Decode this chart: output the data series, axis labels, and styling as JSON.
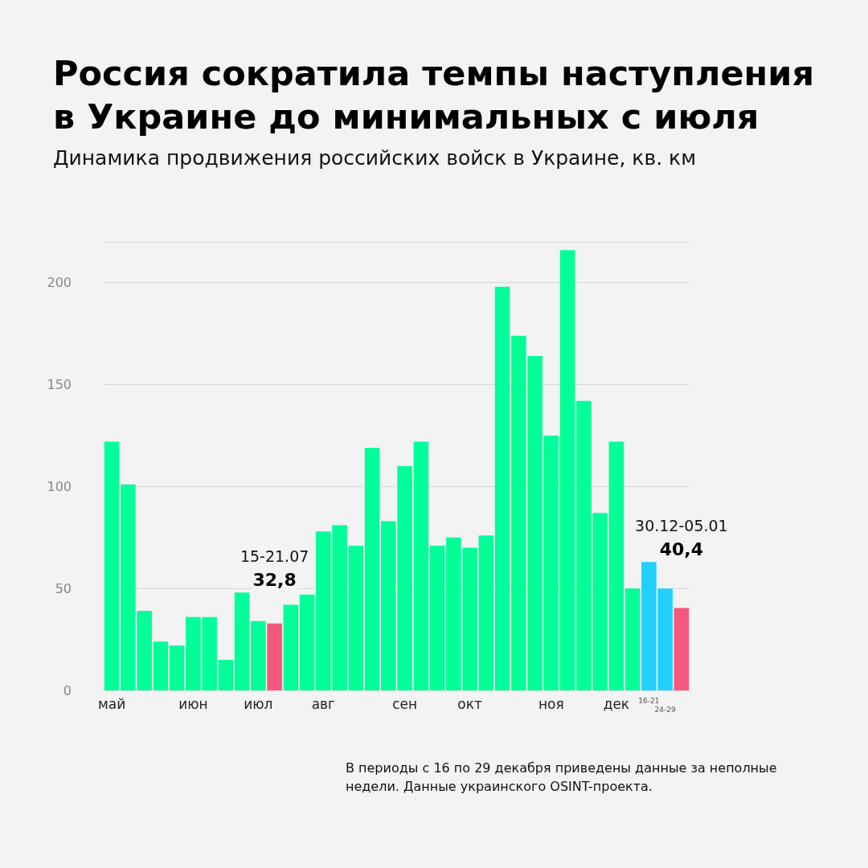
{
  "chart_data": {
    "type": "bar",
    "title": "Россия сократила темпы наступления в Украине до минимальных с июля",
    "subtitle": "Динамика продвижения российских войск в Украине, кв. км",
    "categories": [
      "май",
      null,
      null,
      null,
      null,
      "июн",
      null,
      null,
      null,
      "июл",
      null,
      null,
      null,
      "авг",
      null,
      null,
      null,
      null,
      "сен",
      null,
      null,
      null,
      "окт",
      null,
      null,
      null,
      null,
      "ноя",
      null,
      null,
      null,
      "дек",
      null,
      "16-21",
      "24-29",
      null
    ],
    "values": [
      122,
      101,
      39,
      24,
      22,
      36,
      36,
      15,
      48,
      34,
      32.8,
      42,
      47,
      78,
      81,
      71,
      119,
      83,
      110,
      122,
      71,
      75,
      70,
      76,
      198,
      174,
      164,
      125,
      216,
      142,
      87,
      122,
      50,
      63,
      50,
      40.4
    ],
    "colors": [
      "#00ff99",
      "#00ff99",
      "#00ff99",
      "#00ff99",
      "#00ff99",
      "#00ff99",
      "#00ff99",
      "#00ff99",
      "#00ff99",
      "#00ff99",
      "#f5577d",
      "#00ff99",
      "#00ff99",
      "#00ff99",
      "#00ff99",
      "#00ff99",
      "#00ff99",
      "#00ff99",
      "#00ff99",
      "#00ff99",
      "#00ff99",
      "#00ff99",
      "#00ff99",
      "#00ff99",
      "#00ff99",
      "#00ff99",
      "#00ff99",
      "#00ff99",
      "#00ff99",
      "#00ff99",
      "#00ff99",
      "#00ff99",
      "#00ff99",
      "#22d0ff",
      "#22d0ff",
      "#f5577d"
    ],
    "value_labels": [
      null,
      null,
      null,
      null,
      null,
      null,
      null,
      null,
      null,
      null,
      "32,8",
      null,
      null,
      null,
      null,
      null,
      null,
      null,
      null,
      null,
      null,
      null,
      null,
      null,
      null,
      null,
      null,
      null,
      null,
      null,
      null,
      null,
      null,
      null,
      null,
      "40,4"
    ],
    "annotations": [
      "15-21.07",
      "30.12-05.01",
      "В периоды с 16 по 29 декабря приведены данные за неполные недели. Данные украинского OSINT-проекта."
    ],
    "ylim": [
      0,
      220
    ],
    "yticks": [
      0,
      50,
      100,
      150,
      200
    ],
    "grid": "y"
  }
}
